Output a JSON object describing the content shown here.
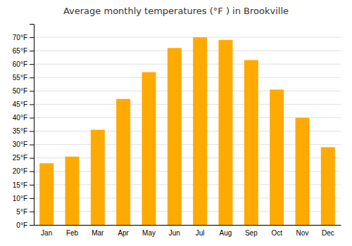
{
  "chart_data": {
    "type": "bar",
    "title": "Average monthly temperatures (°F ) in Brookville",
    "categories": [
      "Jan",
      "Feb",
      "Mar",
      "Apr",
      "May",
      "Jun",
      "Jul",
      "Aug",
      "Sep",
      "Oct",
      "Nov",
      "Dec"
    ],
    "values": [
      23,
      25.5,
      35.5,
      47,
      57,
      66,
      70,
      69,
      61.5,
      50.5,
      40,
      29
    ],
    "color": "#FFAA00",
    "ylim": [
      0,
      75
    ],
    "yticks": [
      {
        "value": 0,
        "label": "0°F"
      },
      {
        "value": 5,
        "label": "5°F"
      },
      {
        "value": 10,
        "label": "10°F"
      },
      {
        "value": 15,
        "label": "15°F"
      },
      {
        "value": 20,
        "label": "20°F"
      },
      {
        "value": 25,
        "label": "25°F"
      },
      {
        "value": 30,
        "label": "30°F"
      },
      {
        "value": 35,
        "label": "35°F"
      },
      {
        "value": 40,
        "label": "40°F"
      },
      {
        "value": 45,
        "label": "45°F"
      },
      {
        "value": 50,
        "label": "50°F"
      },
      {
        "value": 55,
        "label": "55°F"
      },
      {
        "value": 60,
        "label": "60°F"
      },
      {
        "value": 65,
        "label": "65°F"
      },
      {
        "value": 70,
        "label": "70°F"
      }
    ],
    "grid": true
  }
}
